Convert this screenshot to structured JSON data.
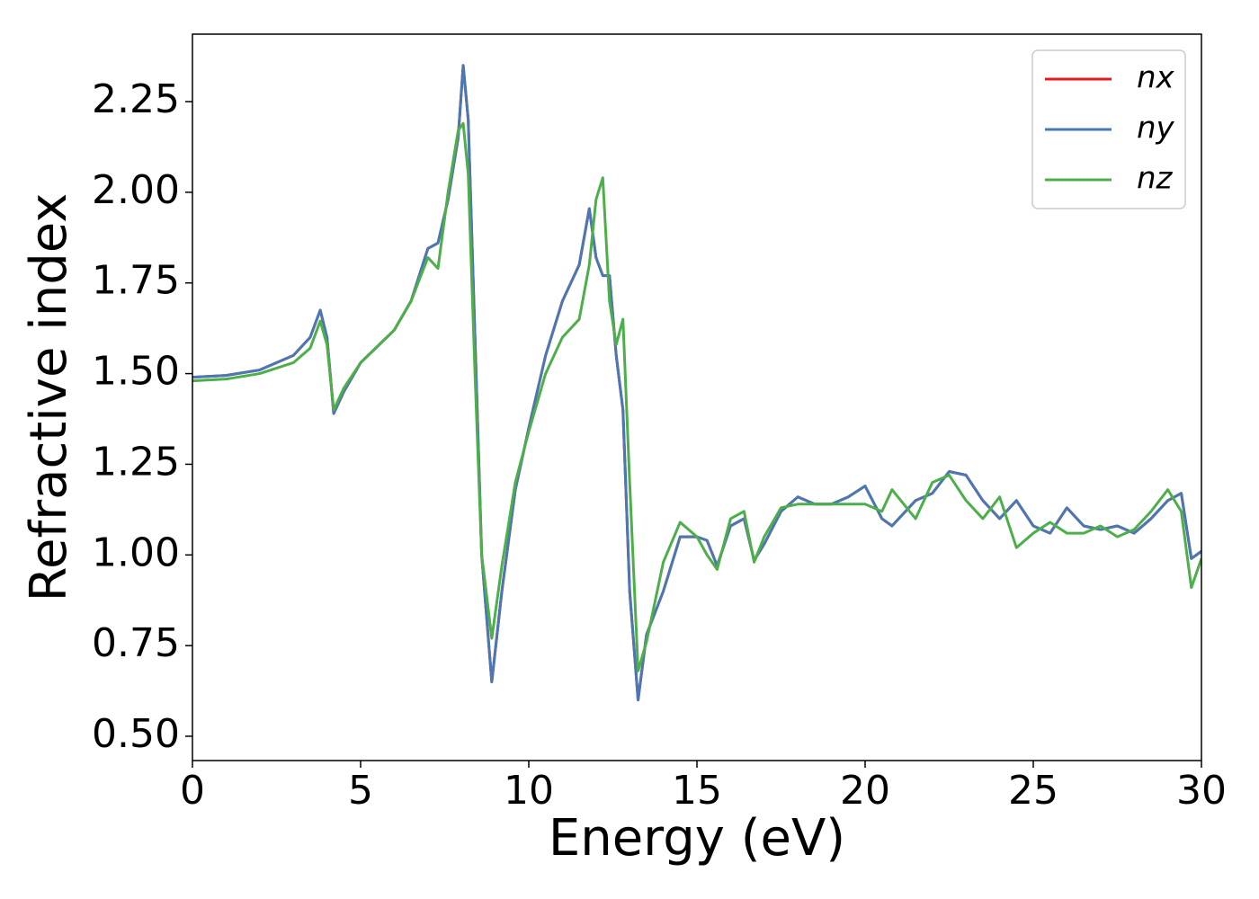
{
  "chart_data": {
    "type": "line",
    "xlabel": "Energy (eV)",
    "ylabel": "Refractive index",
    "x": [
      0,
      1,
      2,
      3,
      3.5,
      3.8,
      4.0,
      4.2,
      4.5,
      5,
      6,
      6.5,
      7,
      7.3,
      7.6,
      7.9,
      8.05,
      8.2,
      8.4,
      8.6,
      8.9,
      9.2,
      9.6,
      10,
      10.5,
      11,
      11.5,
      11.8,
      12.0,
      12.2,
      12.4,
      12.6,
      12.8,
      13.0,
      13.25,
      13.5,
      14,
      14.5,
      15,
      15.3,
      15.6,
      16,
      16.4,
      16.7,
      17,
      17.5,
      18,
      18.5,
      19,
      19.5,
      20,
      20.5,
      20.8,
      21.5,
      22,
      22.5,
      23,
      23.5,
      24,
      24.5,
      25,
      25.5,
      26,
      26.5,
      27,
      27.5,
      28,
      28.5,
      29,
      29.4,
      29.7,
      30
    ],
    "series": [
      {
        "name": "nx",
        "color": "#e41a1c",
        "values": [
          1.49,
          1.495,
          1.51,
          1.55,
          1.6,
          1.675,
          1.6,
          1.39,
          1.45,
          1.53,
          1.62,
          1.7,
          1.845,
          1.86,
          1.98,
          2.15,
          2.35,
          2.2,
          1.6,
          1.0,
          0.65,
          0.9,
          1.18,
          1.35,
          1.55,
          1.7,
          1.8,
          1.955,
          1.82,
          1.77,
          1.77,
          1.55,
          1.4,
          0.9,
          0.6,
          0.78,
          0.9,
          1.05,
          1.05,
          1.04,
          0.97,
          1.08,
          1.1,
          0.985,
          1.03,
          1.12,
          1.16,
          1.14,
          1.14,
          1.16,
          1.19,
          1.1,
          1.08,
          1.15,
          1.17,
          1.23,
          1.22,
          1.15,
          1.1,
          1.15,
          1.08,
          1.06,
          1.13,
          1.08,
          1.07,
          1.08,
          1.06,
          1.1,
          1.15,
          1.17,
          0.99,
          1.01
        ]
      },
      {
        "name": "ny",
        "color": "#4a78b5",
        "values": [
          1.49,
          1.495,
          1.51,
          1.55,
          1.6,
          1.675,
          1.6,
          1.39,
          1.45,
          1.53,
          1.62,
          1.7,
          1.845,
          1.86,
          1.98,
          2.15,
          2.35,
          2.2,
          1.6,
          1.0,
          0.65,
          0.9,
          1.18,
          1.35,
          1.55,
          1.7,
          1.8,
          1.955,
          1.82,
          1.77,
          1.77,
          1.55,
          1.4,
          0.9,
          0.6,
          0.78,
          0.9,
          1.05,
          1.05,
          1.04,
          0.97,
          1.08,
          1.1,
          0.985,
          1.03,
          1.12,
          1.16,
          1.14,
          1.14,
          1.16,
          1.19,
          1.1,
          1.08,
          1.15,
          1.17,
          1.23,
          1.22,
          1.15,
          1.1,
          1.15,
          1.08,
          1.06,
          1.13,
          1.08,
          1.07,
          1.08,
          1.06,
          1.1,
          1.15,
          1.17,
          0.99,
          1.01
        ]
      },
      {
        "name": "nz",
        "color": "#4daf4a",
        "values": [
          1.48,
          1.485,
          1.5,
          1.53,
          1.57,
          1.645,
          1.58,
          1.4,
          1.46,
          1.53,
          1.62,
          1.7,
          1.82,
          1.79,
          2.0,
          2.17,
          2.19,
          2.05,
          1.5,
          1.0,
          0.77,
          0.97,
          1.2,
          1.34,
          1.5,
          1.6,
          1.65,
          1.8,
          1.98,
          2.04,
          1.7,
          1.58,
          1.65,
          1.2,
          0.68,
          0.76,
          0.98,
          1.09,
          1.05,
          1.0,
          0.96,
          1.1,
          1.12,
          0.98,
          1.05,
          1.13,
          1.14,
          1.14,
          1.14,
          1.14,
          1.14,
          1.12,
          1.18,
          1.1,
          1.2,
          1.22,
          1.15,
          1.1,
          1.16,
          1.02,
          1.06,
          1.09,
          1.06,
          1.06,
          1.08,
          1.05,
          1.07,
          1.12,
          1.18,
          1.12,
          0.91,
          0.99
        ]
      }
    ],
    "xlim": [
      0,
      30
    ],
    "xticks": [
      0,
      5,
      10,
      15,
      20,
      25,
      30
    ],
    "ylim": [
      0.433,
      2.436
    ],
    "yticks": [
      {
        "value": 0.5,
        "label": "0.50"
      },
      0.75,
      {
        "value": 1.0,
        "label": "1.00"
      },
      1.25,
      {
        "value": 1.5,
        "label": "1.50"
      },
      1.75,
      {
        "value": 2.0,
        "label": "2.00"
      },
      2.25
    ],
    "legend": "upper right"
  }
}
